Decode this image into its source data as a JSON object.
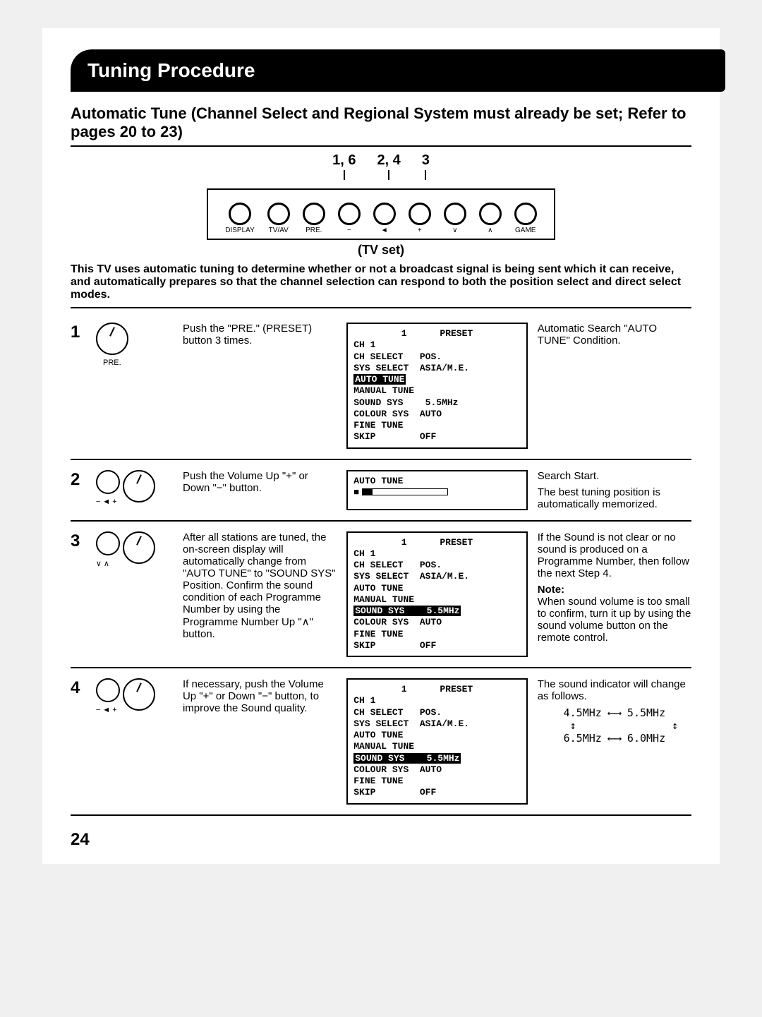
{
  "title": "Tuning Procedure",
  "subtitle": "Automatic Tune (Channel Select and Regional System must already be set; Refer to pages 20 to 23)",
  "tvset": {
    "step_labels": [
      "1, 6",
      "2, 4",
      "3"
    ],
    "buttons": [
      "DISPLAY",
      "TV/AV",
      "PRE.",
      "−",
      "◄",
      "+",
      "∨",
      "∧",
      "GAME"
    ],
    "caption": "(TV set)"
  },
  "intro": "This TV uses automatic tuning to determine whether or not a broadcast signal is being sent which it can receive, and automatically prepares so that the channel selection can respond to both the position select and direct select modes.",
  "steps": [
    {
      "num": "1",
      "icon_label": "PRE.",
      "text": "Push the \"PRE.\" (PRESET) button 3 times.",
      "screen": {
        "header": "1      PRESET",
        "lines": [
          "CH 1",
          "CH SELECT   POS.",
          "SYS SELECT  ASIA/M.E.",
          {
            "inv": "AUTO TUNE"
          },
          "MANUAL TUNE",
          "SOUND SYS    5.5MHz",
          "COLOUR SYS  AUTO",
          "FINE TUNE",
          "SKIP        OFF"
        ]
      },
      "note": "Automatic Search \"AUTO TUNE\" Condition."
    },
    {
      "num": "2",
      "icon_label": "− ◄ +",
      "text": "Push the Volume Up \"+\" or Down \"−\" button.",
      "screen": {
        "header": "",
        "lines": [
          "AUTO TUNE",
          {
            "progress": true
          }
        ]
      },
      "note": "Search Start.",
      "note2": "The best tuning position is automatically memorized."
    },
    {
      "num": "3",
      "icon_label": "∨    ∧",
      "text": "After all stations are tuned, the on-screen display will automatically change from \"AUTO TUNE\" to \"SOUND SYS\" Position. Confirm the sound condition of each Programme Number by using the Programme Number Up \"∧\" button.",
      "screen": {
        "header": "1      PRESET",
        "lines": [
          "CH 1",
          "CH SELECT   POS.",
          "SYS SELECT  ASIA/M.E.",
          "AUTO TUNE",
          "MANUAL TUNE",
          {
            "inv": "SOUND SYS    5.5MHz"
          },
          "COLOUR SYS  AUTO",
          "FINE TUNE",
          "SKIP        OFF"
        ]
      },
      "note": "If the Sound is not clear or no sound is produced on a Programme Number, then follow the next Step 4.",
      "note_bold": "Note:",
      "note3": "When sound volume is too small to confirm, turn it up by using the sound volume button on the remote control."
    },
    {
      "num": "4",
      "icon_label": "− ◄ +",
      "text": "If necessary, push the Volume Up \"+\" or Down \"−\" button, to improve the Sound quality.",
      "screen": {
        "header": "1      PRESET",
        "lines": [
          "CH 1",
          "CH SELECT   POS.",
          "SYS SELECT  ASIA/M.E.",
          "AUTO TUNE",
          "MANUAL TUNE",
          {
            "inv": "SOUND SYS    5.5MHz"
          },
          "COLOUR SYS  AUTO",
          "FINE TUNE",
          "SKIP        OFF"
        ]
      },
      "note": "The sound indicator will change as follows.",
      "freq": {
        "l1": "4.5MHz ⟵⟶ 5.5MHz",
        "l2": "   ↕               ↕",
        "l3": "6.5MHz ⟵⟶ 6.0MHz"
      }
    }
  ],
  "pagenum": "24"
}
